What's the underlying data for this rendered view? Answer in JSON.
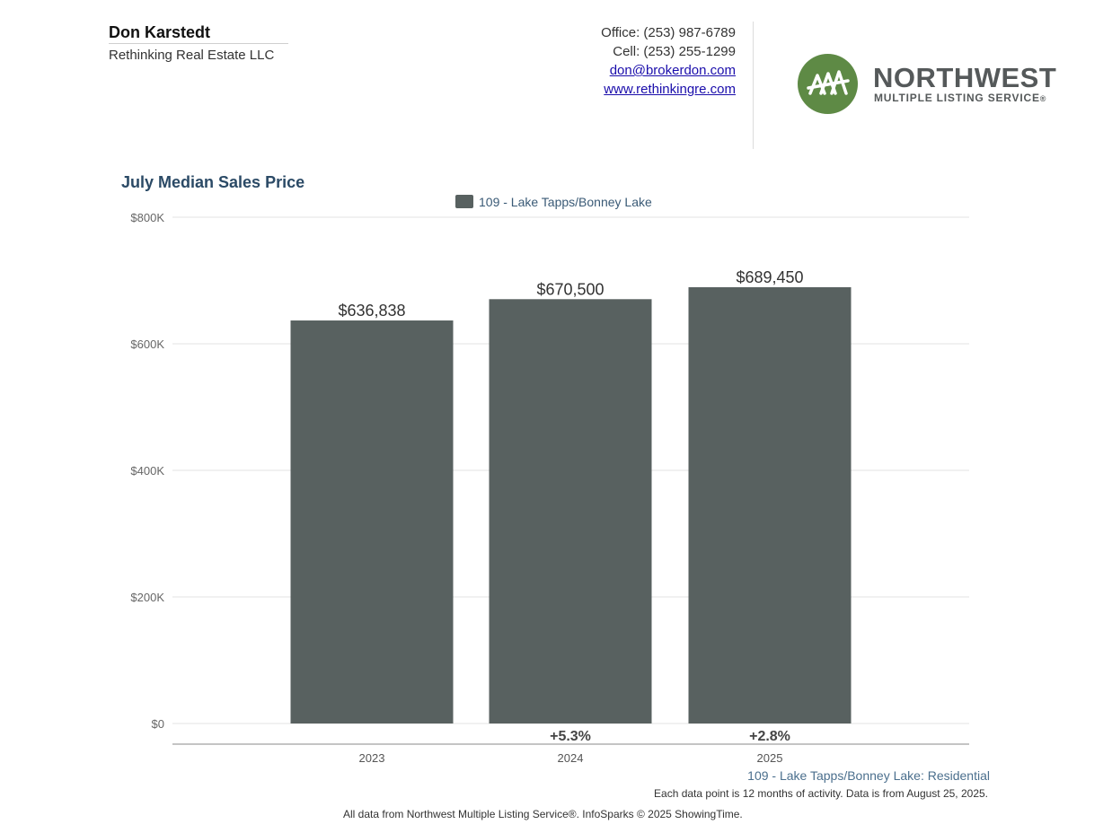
{
  "header": {
    "agent_name": "Don Karstedt",
    "company": "Rethinking Real Estate LLC",
    "office": "Office: (253) 987-6789",
    "cell": "Cell: (253) 255-1299",
    "email": "don@brokerdon.com",
    "website": "www.rethinkingre.com"
  },
  "logo": {
    "word": "NORTHWEST",
    "sub": "MULTIPLE LISTING SERVICE",
    "mark": "®",
    "icon": "trees-icon",
    "color": "#5e8a45"
  },
  "chart_data": {
    "type": "bar",
    "title": "July Median Sales Price",
    "categories": [
      "2023",
      "2024",
      "2025"
    ],
    "series": [
      {
        "name": "109 - Lake Tapps/Bonney Lake",
        "values": [
          636838,
          670500,
          689450
        ],
        "color": "#586160"
      }
    ],
    "value_labels": [
      "$636,838",
      "$670,500",
      "$689,450"
    ],
    "changes": [
      "",
      "+5.3%",
      "+2.8%"
    ],
    "ylim": [
      0,
      800000
    ],
    "yticks": [
      0,
      200000,
      400000,
      600000,
      800000
    ],
    "ytick_labels": [
      "$0",
      "$200K",
      "$400K",
      "$600K",
      "$800K"
    ],
    "xlabel": "",
    "ylabel": "",
    "grid": true,
    "legend": "top-center"
  },
  "footer": {
    "area": "109 - Lake Tapps/Bonney Lake: Residential",
    "note": "Each data point is 12 months of activity. Data is from August 25, 2025.",
    "source": "All data from Northwest Multiple Listing Service®. InfoSparks © 2025 ShowingTime."
  }
}
